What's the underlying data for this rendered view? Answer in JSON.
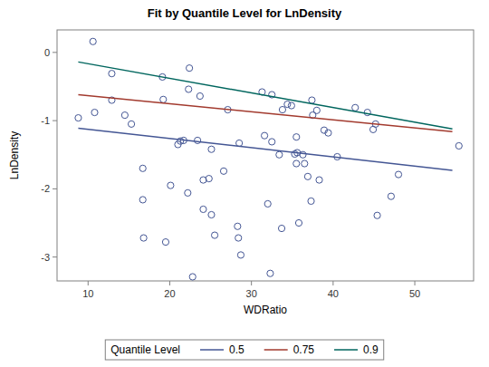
{
  "chart_data": {
    "type": "scatter",
    "title": "Fit by Quantile Level for LnDensity",
    "x_label": "WDRatio",
    "y_label": "LnDensity",
    "legend_title": "Quantile Level",
    "legend": "bottom",
    "grid": false,
    "xlim": [
      6.2,
      57.2
    ],
    "ylim": [
      -3.35,
      0.33
    ],
    "xticks": [
      10,
      20,
      30,
      40,
      50
    ],
    "yticks": [
      -3,
      -2,
      -1,
      0
    ],
    "series": [
      {
        "type": "scatter",
        "marker": "circle",
        "color": "#445694",
        "x": [
          8.8,
          10.6,
          10.8,
          12.9,
          12.9,
          14.5,
          15.3,
          16.7,
          16.7,
          16.8,
          19.1,
          19.2,
          19.5,
          20.1,
          21.0,
          21.3,
          21.7,
          22.4,
          22.3,
          22.2,
          23.4,
          23.7,
          24.1,
          24.1,
          24.8,
          25.1,
          25.1,
          25.5,
          22.8,
          26.6,
          27.1,
          28.3,
          28.4,
          28.5,
          28.7,
          31.3,
          32.5,
          31.6,
          32.5,
          32.0,
          32.3,
          33.7,
          33.4,
          33.8,
          34.4,
          34.9,
          35.3,
          35.5,
          35.5,
          35.6,
          35.8,
          36.3,
          36.5,
          36.9,
          37.3,
          37.4,
          37.5,
          38.0,
          38.3,
          38.9,
          39.4,
          40.5,
          42.7,
          44.2,
          44.9,
          45.2,
          45.4,
          47.1,
          48.0,
          55.4
        ],
        "values": [
          -0.96,
          0.16,
          -0.88,
          -0.31,
          -0.7,
          -0.92,
          -1.05,
          -1.7,
          -2.16,
          -2.72,
          -0.36,
          -0.69,
          -2.78,
          -1.95,
          -1.35,
          -1.3,
          -1.29,
          -0.23,
          -0.54,
          -2.06,
          -1.29,
          -0.64,
          -1.87,
          -2.3,
          -1.85,
          -1.42,
          -2.38,
          -2.68,
          -3.29,
          -1.74,
          -0.84,
          -2.55,
          -2.72,
          -1.33,
          -2.97,
          -0.58,
          -0.62,
          -1.22,
          -1.31,
          -2.22,
          -3.24,
          -2.58,
          -1.5,
          -0.84,
          -0.76,
          -0.78,
          -1.49,
          -1.24,
          -1.63,
          -1.47,
          -2.5,
          -1.5,
          -1.63,
          -1.82,
          -2.18,
          -0.7,
          -0.92,
          -0.85,
          -1.87,
          -1.14,
          -1.18,
          -1.53,
          -0.81,
          -0.88,
          -1.13,
          -1.05,
          -2.39,
          -2.11,
          -1.79,
          -1.37
        ]
      },
      {
        "type": "line",
        "name": "0.5",
        "color": "#445694",
        "x": [
          8.8,
          54.6
        ],
        "values": [
          -1.11,
          -1.73
        ]
      },
      {
        "type": "line",
        "name": "0.75",
        "color": "#A23A2E",
        "x": [
          8.8,
          54.6
        ],
        "values": [
          -0.62,
          -1.16
        ]
      },
      {
        "type": "line",
        "name": "0.9",
        "color": "#01665E",
        "x": [
          8.8,
          54.6
        ],
        "values": [
          -0.14,
          -1.12
        ]
      }
    ]
  }
}
